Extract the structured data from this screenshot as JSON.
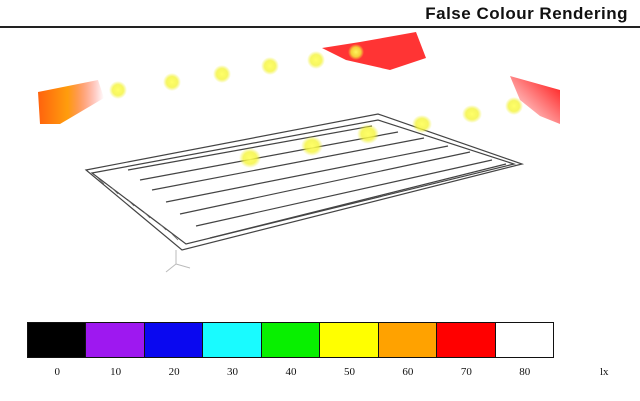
{
  "header": {
    "title": "False Colour Rendering"
  },
  "legend": {
    "unit": "lx",
    "steps": [
      {
        "label": "0",
        "color": "#000000"
      },
      {
        "label": "10",
        "color": "#9e18f0"
      },
      {
        "label": "20",
        "color": "#0a08f0"
      },
      {
        "label": "30",
        "color": "#19fbff"
      },
      {
        "label": "40",
        "color": "#08f000"
      },
      {
        "label": "50",
        "color": "#ffff00"
      },
      {
        "label": "60",
        "color": "#ffa200"
      },
      {
        "label": "70",
        "color": "#ff0000"
      },
      {
        "label": "80",
        "color": "#ffffff"
      }
    ]
  },
  "scene": {
    "icons": [
      "luminaire-icon",
      "axis-gizmo-icon"
    ]
  }
}
